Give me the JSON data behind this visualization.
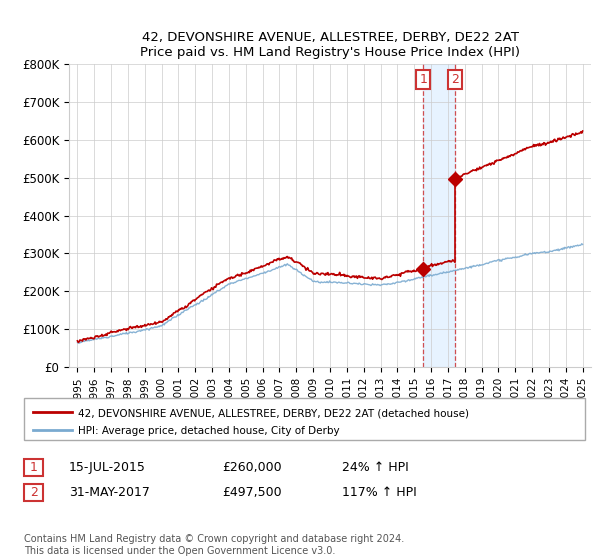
{
  "title": "42, DEVONSHIRE AVENUE, ALLESTREE, DERBY, DE22 2AT",
  "subtitle": "Price paid vs. HM Land Registry's House Price Index (HPI)",
  "legend_line1": "42, DEVONSHIRE AVENUE, ALLESTREE, DERBY, DE22 2AT (detached house)",
  "legend_line2": "HPI: Average price, detached house, City of Derby",
  "annotation1_date": "15-JUL-2015",
  "annotation1_price": "£260,000",
  "annotation1_hpi": "24% ↑ HPI",
  "annotation2_date": "31-MAY-2017",
  "annotation2_price": "£497,500",
  "annotation2_hpi": "117% ↑ HPI",
  "footer": "Contains HM Land Registry data © Crown copyright and database right 2024.\nThis data is licensed under the Open Government Licence v3.0.",
  "red_color": "#bb0000",
  "blue_color": "#7aaad0",
  "annotation_color": "#cc3333",
  "shading_color": "#ddeeff",
  "background_color": "#ffffff",
  "grid_color": "#cccccc",
  "ylim": [
    0,
    800000
  ],
  "yticks": [
    0,
    100000,
    200000,
    300000,
    400000,
    500000,
    600000,
    700000,
    800000
  ],
  "ytick_labels": [
    "£0",
    "£100K",
    "£200K",
    "£300K",
    "£400K",
    "£500K",
    "£600K",
    "£700K",
    "£800K"
  ],
  "sale1_year": 2015.54,
  "sale1_price": 260000,
  "sale2_year": 2017.42,
  "sale2_price": 497500,
  "xlim": [
    1994.5,
    2025.5
  ]
}
